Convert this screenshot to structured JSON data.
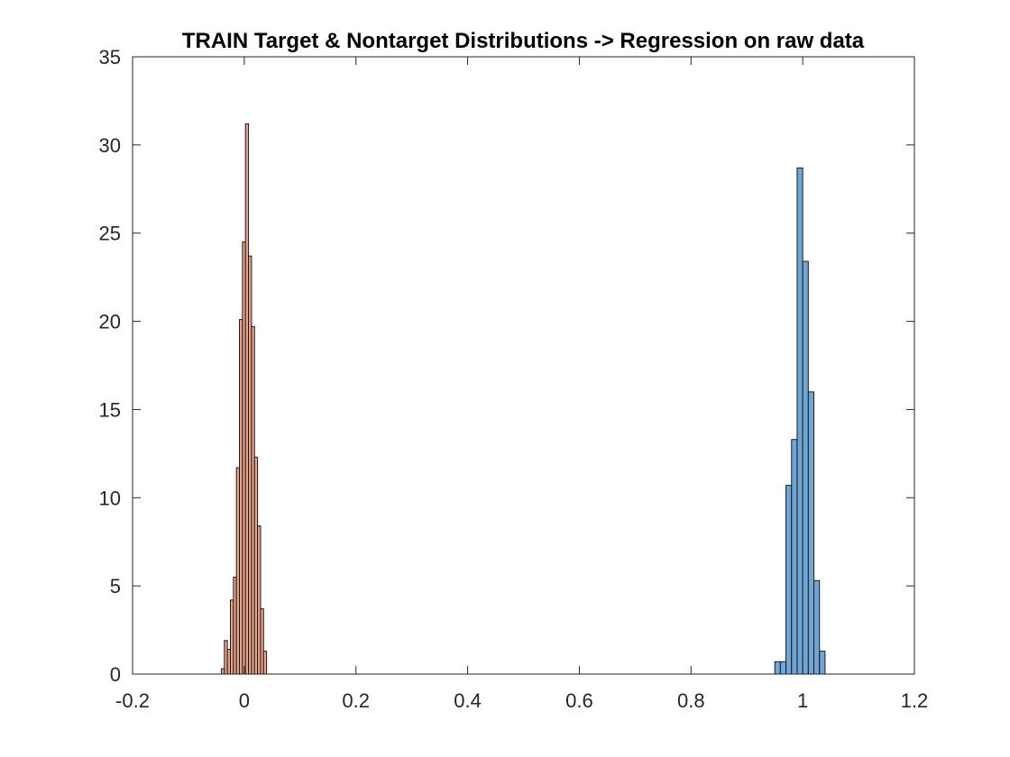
{
  "chart_data": {
    "type": "bar",
    "title": "TRAIN Target & Nontarget Distributions -> Regression on raw data",
    "xlabel": "",
    "ylabel": "",
    "xlim": [
      -0.2,
      1.2
    ],
    "ylim": [
      0,
      35
    ],
    "xticks": [
      -0.2,
      0,
      0.2,
      0.4,
      0.6,
      0.8,
      1,
      1.2
    ],
    "xtick_labels": [
      "-0.2",
      "0",
      "0.2",
      "0.4",
      "0.6",
      "0.8",
      "1",
      "1.2"
    ],
    "yticks": [
      0,
      5,
      10,
      15,
      20,
      25,
      30,
      35
    ],
    "ytick_labels": [
      "0",
      "5",
      "10",
      "15",
      "20",
      "25",
      "30",
      "35"
    ],
    "grid": false,
    "legend": "none",
    "series": [
      {
        "color": "#d95319",
        "fill": "#eba38a",
        "bin_width": 0.0054,
        "bin_centers": [
          -0.0383,
          -0.0329,
          -0.0275,
          -0.0221,
          -0.0167,
          -0.0113,
          -0.0059,
          -0.0005,
          0.0049,
          0.0103,
          0.0157,
          0.0211,
          0.0265,
          0.0319,
          0.0373
        ],
        "values": [
          0.3,
          1.9,
          1.4,
          4.2,
          5.5,
          11.7,
          20.1,
          24.5,
          31.2,
          23.7,
          19.7,
          12.3,
          8.4,
          3.7,
          1.3
        ]
      },
      {
        "color": "#0072bd",
        "fill": "#70a6d6",
        "bin_width": 0.01,
        "bin_centers": [
          0.955,
          0.965,
          0.975,
          0.985,
          0.995,
          1.005,
          1.015,
          1.025,
          1.035
        ],
        "values": [
          0.7,
          0.7,
          10.7,
          13.3,
          28.7,
          23.4,
          16.0,
          5.3,
          1.3
        ]
      }
    ]
  },
  "colors": {
    "axis": "#262626",
    "edge": "#1a1a1a",
    "background": "#ffffff"
  }
}
